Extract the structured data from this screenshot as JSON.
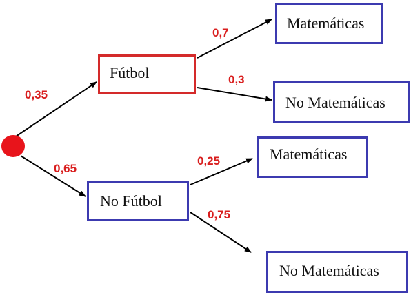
{
  "root": {
    "branches": [
      {
        "probability": "0,35",
        "label": "Fútbol",
        "branches": [
          {
            "probability": "0,7",
            "label": "Matemáticas"
          },
          {
            "probability": "0,3",
            "label": "No Matemáticas"
          }
        ]
      },
      {
        "probability": "0,65",
        "label": "No Fútbol",
        "branches": [
          {
            "probability": "0,25",
            "label": "Matemáticas"
          },
          {
            "probability": "0,75",
            "label": "No Matemáticas"
          }
        ]
      }
    ]
  },
  "colors": {
    "root_node": "#e8141b",
    "first_level_box_football": "#d42a2a",
    "box_border": "#3c3ab0",
    "probability_text": "#d91e1e",
    "arrow": "#000000"
  }
}
